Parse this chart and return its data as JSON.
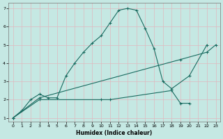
{
  "xlabel": "Humidex (Indice chaleur)",
  "xlim": [
    -0.5,
    23.5
  ],
  "ylim": [
    0.8,
    7.3
  ],
  "xticks": [
    0,
    1,
    2,
    3,
    4,
    5,
    6,
    7,
    8,
    9,
    10,
    11,
    12,
    13,
    14,
    15,
    16,
    17,
    18,
    19,
    20,
    21,
    22,
    23
  ],
  "yticks": [
    1,
    2,
    3,
    4,
    5,
    6,
    7
  ],
  "bg_color": "#c5e8e3",
  "grid_color": "#e0b8be",
  "line_color": "#1a6b60",
  "line1_x": [
    0,
    1,
    2,
    3,
    4,
    5,
    6,
    7,
    8,
    9,
    10,
    11,
    12,
    13,
    14,
    15,
    16,
    17,
    18,
    20,
    22
  ],
  "line1_y": [
    1.0,
    1.4,
    2.0,
    2.3,
    2.1,
    2.1,
    3.3,
    4.0,
    4.6,
    5.1,
    5.5,
    6.2,
    6.9,
    7.0,
    6.9,
    5.9,
    4.8,
    3.0,
    2.6,
    3.3,
    5.0
  ],
  "line2_x": [
    0,
    3,
    19,
    22,
    23
  ],
  "line2_y": [
    1.0,
    2.1,
    4.2,
    4.6,
    5.0
  ],
  "line3_x": [
    0,
    3,
    10,
    11,
    18,
    19,
    20
  ],
  "line3_y": [
    1.0,
    2.0,
    2.0,
    2.0,
    2.5,
    1.8,
    1.8
  ]
}
